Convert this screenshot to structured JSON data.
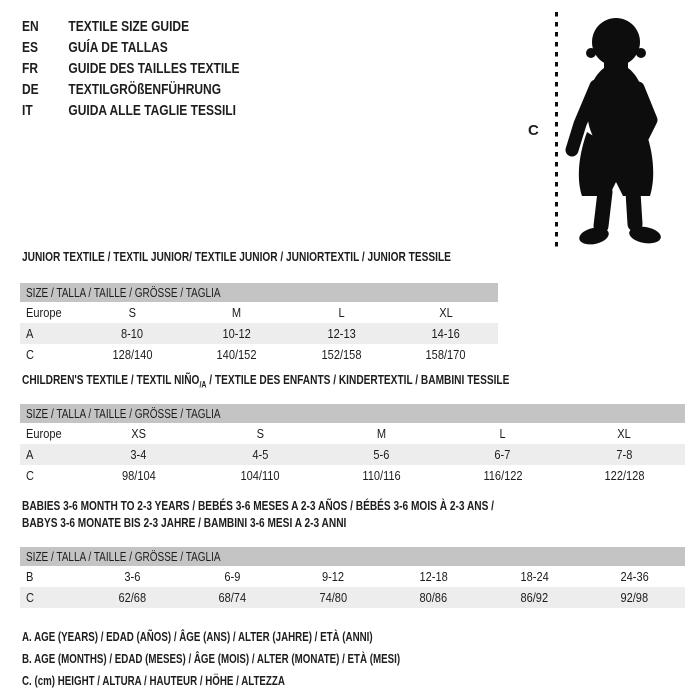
{
  "colors": {
    "text": "#1d1d1d",
    "header_bar": "#c4c4c4",
    "alt_row": "#ededed",
    "background": "#ffffff",
    "silhouette": "#0d0d0d"
  },
  "languages": [
    {
      "code": "EN",
      "label": "TEXTILE SIZE GUIDE"
    },
    {
      "code": "ES",
      "label": "GUÍA DE TALLAS"
    },
    {
      "code": "FR",
      "label": "GUIDE DES TAILLES TEXTILE"
    },
    {
      "code": "DE",
      "label": "TEXTILGRÖßENFÜHRUNG"
    },
    {
      "code": "IT",
      "label": "GUIDA ALLE TAGLIE TESSILI"
    }
  ],
  "figure": {
    "measure_label": "C",
    "silhouette": "toddler-silhouette"
  },
  "tables": [
    {
      "title": "JUNIOR TEXTILE / TEXTIL JUNIOR/ TEXTILE JUNIOR / JUNIORTEXTIL / JUNIOR TESSILE",
      "header": "SIZE / TALLA / TAILLE / GRÖSSE / TAGLIA",
      "rows": [
        {
          "label": "Europe",
          "values": [
            "S",
            "M",
            "L",
            "XL"
          ]
        },
        {
          "label": "A",
          "values": [
            "8-10",
            "10-12",
            "12-13",
            "14-16"
          ]
        },
        {
          "label": "C",
          "values": [
            "128/140",
            "140/152",
            "152/158",
            "158/170"
          ]
        }
      ]
    },
    {
      "title_parts": {
        "pre": "CHILDREN'S TEXTILE / TEXTIL NIÑO",
        "sub": "/A",
        "post": " / TEXTILE DES ENFANTS / KINDERTEXTIL / BAMBINI TESSILE"
      },
      "header": "SIZE / TALLA / TAILLE / GRÖSSE / TAGLIA",
      "rows": [
        {
          "label": "Europe",
          "values": [
            "XS",
            "S",
            "M",
            "L",
            "XL"
          ]
        },
        {
          "label": "A",
          "values": [
            "3-4",
            "4-5",
            "5-6",
            "6-7",
            "7-8"
          ]
        },
        {
          "label": "C",
          "values": [
            "98/104",
            "104/110",
            "110/116",
            "116/122",
            "122/128"
          ]
        }
      ]
    },
    {
      "title": "BABIES 3-6 MONTH TO 2-3 YEARS / BEBÉS 3-6 MESES A 2-3 AÑOS / BÉBÉS 3-6 MOIS À 2-3 ANS /",
      "title2": "BABYS 3-6 MONATE BIS 2-3 JAHRE / BAMBINI 3-6 MESI A 2-3 ANNI",
      "header": "SIZE / TALLA / TAILLE / GRÖSSE / TAGLIA",
      "rows": [
        {
          "label": "B",
          "values": [
            "3-6",
            "6-9",
            "9-12",
            "12-18",
            "18-24",
            "24-36"
          ]
        },
        {
          "label": "C",
          "values": [
            "62/68",
            "68/74",
            "74/80",
            "80/86",
            "86/92",
            "92/98"
          ]
        }
      ]
    }
  ],
  "legend": [
    "A. AGE (YEARS) / EDAD (AÑOS) / ÂGE (ANS) / ALTER (JAHRE) / ETÀ (ANNI)",
    "B. AGE (MONTHS) / EDAD (MESES) / ÂGE (MOIS) / ALTER (MONATE) / ETÀ (MESI)",
    "C. (cm) HEIGHT / ALTURA / HAUTEUR / HÖHE / ALTEZZA"
  ]
}
